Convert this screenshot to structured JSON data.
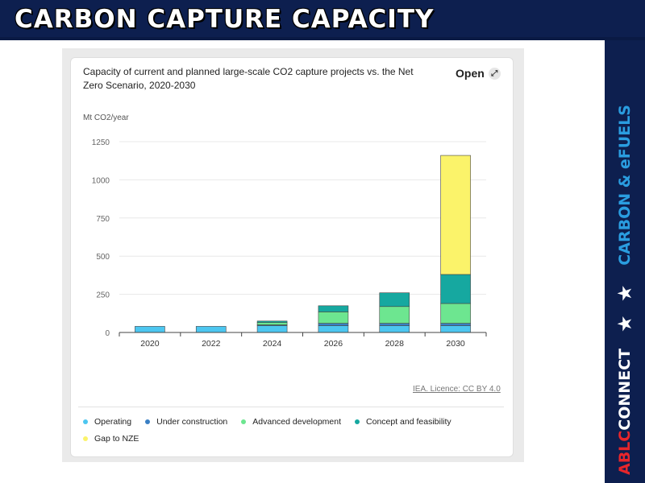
{
  "slide": {
    "title": "CARBON CAPTURE CAPACITY",
    "brand_red": "ABLC",
    "brand_white": "CONNECT",
    "stars": "★ ★",
    "tagline": "CARBON & eFUELS"
  },
  "card": {
    "title": "Capacity of current and planned large-scale CO2 capture projects vs. the Net Zero Scenario, 2020-2030",
    "open_label": "Open",
    "open_icon": "expand-icon",
    "source": "IEA. Licence: CC BY 4.0"
  },
  "colors": {
    "Operating": "#4cc6f0",
    "Under construction": "#3a7fc4",
    "Advanced development": "#6de690",
    "Concept and feasibility": "#16a8a0",
    "Gap to NZE": "#fbf36a"
  },
  "chart_data": {
    "type": "bar",
    "stacked": true,
    "title": "Capacity of current and planned large-scale CO2 capture projects vs. the Net Zero Scenario, 2020-2030",
    "xlabel": "",
    "ylabel": "Mt CO2/year",
    "ylim": [
      0,
      1250
    ],
    "yticks": [
      0,
      250,
      500,
      750,
      1000,
      1250
    ],
    "grid": true,
    "legend_position": "bottom",
    "categories": [
      "2020",
      "2022",
      "2024",
      "2026",
      "2028",
      "2030"
    ],
    "series": [
      {
        "name": "Operating",
        "values": [
          40,
          40,
          45,
          45,
          45,
          45
        ]
      },
      {
        "name": "Under construction",
        "values": [
          0,
          0,
          5,
          15,
          15,
          15
        ]
      },
      {
        "name": "Advanced development",
        "values": [
          0,
          0,
          15,
          75,
          110,
          130
        ]
      },
      {
        "name": "Concept and feasibility",
        "values": [
          0,
          0,
          10,
          40,
          90,
          190
        ]
      },
      {
        "name": "Gap to NZE",
        "values": [
          0,
          0,
          0,
          0,
          0,
          780
        ]
      }
    ]
  }
}
